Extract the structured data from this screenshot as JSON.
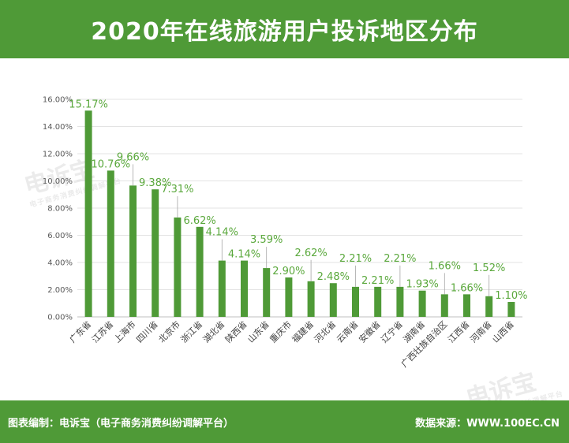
{
  "header": {
    "title": "2020年在线旅游用户投诉地区分布"
  },
  "watermark": {
    "name": "电诉宝",
    "sub": "电子商务消费纠纷调解平台"
  },
  "footer": {
    "left": "图表编制：电诉宝（电子商务消费纠纷调解平台）",
    "right": "数据来源：WWW.100EC.CN"
  },
  "colors": {
    "brand_green": "#4f9a37",
    "bar_green": "#4f9a37",
    "label_green": "#5aa83c"
  },
  "chart_data": {
    "type": "bar",
    "title": "2020年在线旅游用户投诉地区分布",
    "xlabel": "",
    "ylabel": "",
    "ylim": [
      0,
      16
    ],
    "yticks": [
      "0.00%",
      "2.00%",
      "4.00%",
      "6.00%",
      "8.00%",
      "10.00%",
      "12.00%",
      "14.00%",
      "16.00%"
    ],
    "grid": true,
    "legend": "none",
    "categories": [
      "广东省",
      "江苏省",
      "上海市",
      "四川省",
      "北京市",
      "浙江省",
      "湖北省",
      "陕西省",
      "山东省",
      "重庆市",
      "福建省",
      "河北省",
      "云南省",
      "安徽省",
      "辽宁省",
      "湖南省",
      "广西壮族自治区",
      "江西省",
      "河南省",
      "山西省"
    ],
    "values": [
      15.17,
      10.76,
      9.66,
      9.38,
      7.31,
      6.62,
      4.14,
      4.14,
      3.59,
      2.9,
      2.62,
      2.48,
      2.21,
      2.21,
      2.21,
      1.93,
      1.66,
      1.66,
      1.52,
      1.1
    ],
    "data_labels": [
      "15.17%",
      "10.76%",
      "9.66%",
      "9.38%",
      "7.31%",
      "6.62%",
      "4.14%",
      "4.14%",
      "3.59%",
      "2.90%",
      "2.62%",
      "2.48%",
      "2.21%",
      "2.21%",
      "2.21%",
      "1.93%",
      "1.66%",
      "1.66%",
      "1.52%",
      "1.10%"
    ]
  }
}
